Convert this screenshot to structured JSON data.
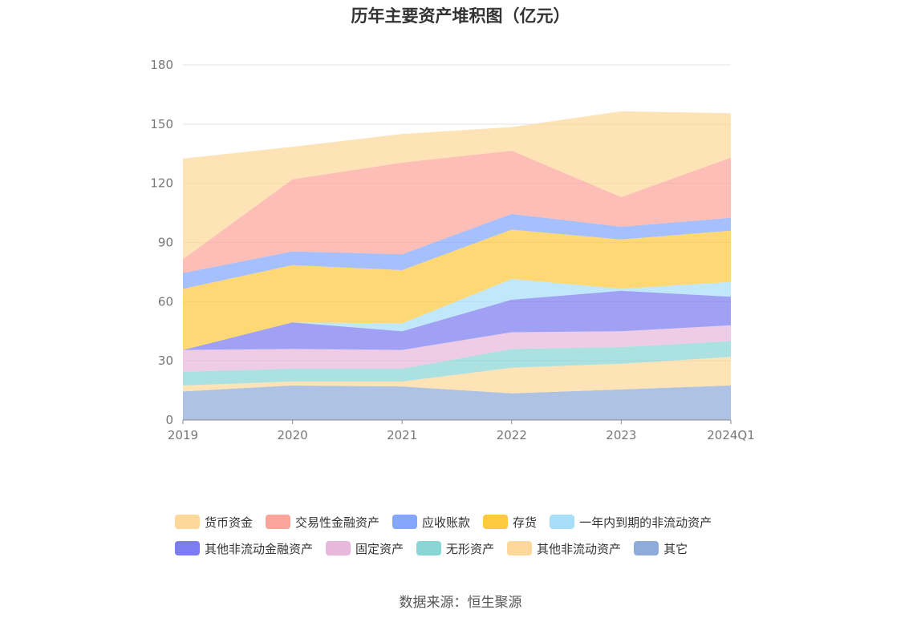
{
  "chart_data": {
    "type": "area",
    "stacked": true,
    "title": "历年主要资产堆积图（亿元）",
    "categories": [
      "2019",
      "2020",
      "2021",
      "2022",
      "2023",
      "2024Q1"
    ],
    "ylim": [
      0,
      180
    ],
    "yticks": [
      "0",
      "30",
      "60",
      "90",
      "120",
      "150",
      "180"
    ],
    "grid": true,
    "legend_position": "bottom",
    "series": [
      {
        "name": "其它",
        "color": "#8fabd9",
        "values": [
          14.5,
          17.5,
          17,
          13.5,
          15.5,
          17.5
        ]
      },
      {
        "name": "其他非流动资产",
        "color": "#fdd89a",
        "values": [
          3,
          2,
          2.5,
          13,
          13,
          14.5
        ]
      },
      {
        "name": "无形资产",
        "color": "#8ad6d6",
        "values": [
          7,
          6.5,
          6.5,
          9.5,
          8.5,
          8
        ]
      },
      {
        "name": "固定资产",
        "color": "#e8b8dc",
        "values": [
          11,
          10,
          9.5,
          8.5,
          8,
          8
        ]
      },
      {
        "name": "其他非流动金融资产",
        "color": "#7b7df0",
        "values": [
          0,
          13.5,
          9.5,
          16.5,
          20.5,
          14.5
        ]
      },
      {
        "name": "一年内到期的非流动资产",
        "color": "#a8dff8",
        "values": [
          0,
          0,
          4,
          10.5,
          1,
          7.5
        ]
      },
      {
        "name": "存货",
        "color": "#fdc93f",
        "values": [
          31,
          29,
          27,
          25,
          25,
          26
        ]
      },
      {
        "name": "应收账款",
        "color": "#84a6fc",
        "values": [
          8,
          7,
          8,
          8,
          6.5,
          6.5
        ]
      },
      {
        "name": "交易性金融资产",
        "color": "#fba59a",
        "values": [
          7,
          36.5,
          46.5,
          32,
          15,
          30.5
        ]
      },
      {
        "name": "货币资金",
        "color": "#fdd89a",
        "values": [
          51,
          16.5,
          14.5,
          12,
          43.5,
          22.5
        ]
      }
    ],
    "source": "数据来源：恒生聚源"
  },
  "legend": {
    "row1": [
      {
        "label": "货币资金",
        "color": "#fdd89a"
      },
      {
        "label": "交易性金融资产",
        "color": "#fba59a"
      },
      {
        "label": "应收账款",
        "color": "#84a6fc"
      },
      {
        "label": "存货",
        "color": "#fdc93f"
      },
      {
        "label": "一年内到期的非流动资产",
        "color": "#a8dff8"
      }
    ],
    "row2": [
      {
        "label": "其他非流动金融资产",
        "color": "#7b7df0"
      },
      {
        "label": "固定资产",
        "color": "#e8b8dc"
      },
      {
        "label": "无形资产",
        "color": "#8ad6d6"
      },
      {
        "label": "其他非流动资产",
        "color": "#fdd89a"
      },
      {
        "label": "其它",
        "color": "#8fabd9"
      }
    ]
  }
}
